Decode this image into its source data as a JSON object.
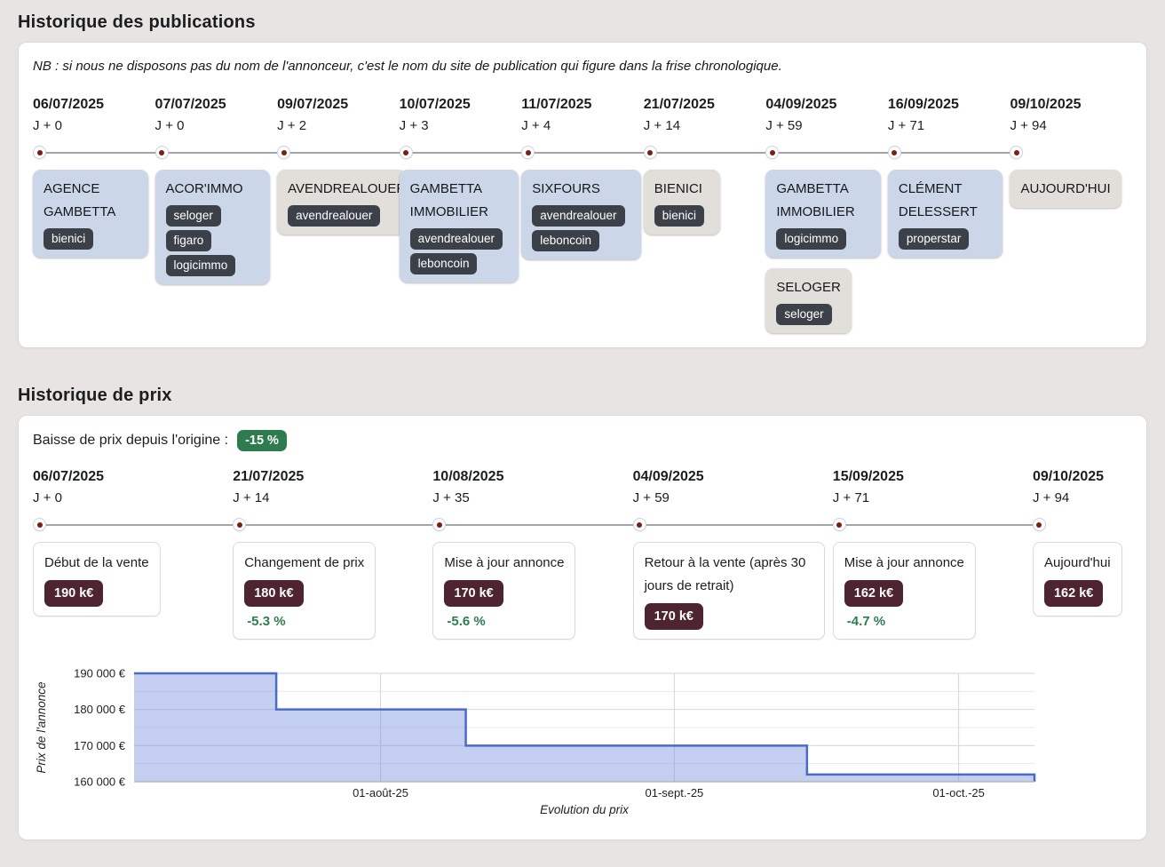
{
  "publications": {
    "title": "Historique des publications",
    "note": "NB : si nous ne disposons pas du nom de l'annonceur, c'est le nom du site de publication qui figure dans la frise chronologique.",
    "events": [
      {
        "date": "06/07/2025",
        "offset": "J + 0",
        "cards": [
          {
            "name": "AGENCE GAMBETTA",
            "type": "agency",
            "tags": [
              "bienici"
            ]
          }
        ]
      },
      {
        "date": "07/07/2025",
        "offset": "J + 0",
        "cards": [
          {
            "name": "ACOR'IMMO",
            "type": "agency",
            "tags": [
              "seloger",
              "figaro",
              "logicimmo"
            ]
          }
        ]
      },
      {
        "date": "09/07/2025",
        "offset": "J + 2",
        "cards": [
          {
            "name": "AVENDREALOUER",
            "type": "site",
            "tags": [
              "avendrealouer"
            ]
          }
        ]
      },
      {
        "date": "10/07/2025",
        "offset": "J + 3",
        "cards": [
          {
            "name": "GAMBETTA IMMOBILIER",
            "type": "agency",
            "tags": [
              "avendrealouer",
              "leboncoin"
            ]
          }
        ]
      },
      {
        "date": "11/07/2025",
        "offset": "J + 4",
        "cards": [
          {
            "name": "SIXFOURS",
            "type": "agency",
            "tags": [
              "avendrealouer",
              "leboncoin"
            ]
          }
        ]
      },
      {
        "date": "21/07/2025",
        "offset": "J + 14",
        "cards": [
          {
            "name": "BIENICI",
            "type": "site",
            "tags": [
              "bienici"
            ]
          }
        ]
      },
      {
        "date": "04/09/2025",
        "offset": "J + 59",
        "cards": [
          {
            "name": "GAMBETTA IMMOBILIER",
            "type": "agency",
            "tags": [
              "logicimmo"
            ]
          },
          {
            "name": "SELOGER",
            "type": "site",
            "tags": [
              "seloger"
            ]
          }
        ]
      },
      {
        "date": "16/09/2025",
        "offset": "J + 71",
        "cards": [
          {
            "name": "CLÉMENT DELESSERT",
            "type": "agency",
            "tags": [
              "properstar"
            ]
          }
        ]
      },
      {
        "date": "09/10/2025",
        "offset": "J + 94",
        "cards": [
          {
            "name": "AUJOURD'HUI",
            "type": "site",
            "tags": []
          }
        ]
      }
    ]
  },
  "prices": {
    "title": "Historique de prix",
    "drop_label": "Baisse de prix depuis l'origine :",
    "drop_value": "-15 %",
    "events": [
      {
        "date": "06/07/2025",
        "offset": "J + 0",
        "label": "Début de la vente",
        "price": "190 k€",
        "percent": ""
      },
      {
        "date": "21/07/2025",
        "offset": "J + 14",
        "label": "Changement de prix",
        "price": "180 k€",
        "percent": "-5.3 %"
      },
      {
        "date": "10/08/2025",
        "offset": "J + 35",
        "label": "Mise à jour annonce",
        "price": "170 k€",
        "percent": "-5.6 %"
      },
      {
        "date": "04/09/2025",
        "offset": "J + 59",
        "label": "Retour à la vente (après 30 jours de retrait)",
        "price": "170 k€",
        "percent": ""
      },
      {
        "date": "15/09/2025",
        "offset": "J + 71",
        "label": "Mise à jour annonce",
        "price": "162 k€",
        "percent": "-4.7 %"
      },
      {
        "date": "09/10/2025",
        "offset": "J + 94",
        "label": "Aujourd'hui",
        "price": "162 k€",
        "percent": ""
      }
    ]
  },
  "chart_data": {
    "type": "area",
    "step": true,
    "xlabel": "Evolution du prix",
    "ylabel": "Prix de l'annonce",
    "points": [
      {
        "day": 0,
        "price": 190000
      },
      {
        "day": 15,
        "price": 180000
      },
      {
        "day": 35,
        "price": 170000
      },
      {
        "day": 71,
        "price": 162000
      }
    ],
    "end_day": 95,
    "ylim": [
      160000,
      190000
    ],
    "y_grid_step": 5000,
    "yticks": [
      {
        "value": 190000,
        "label": "190 000 €"
      },
      {
        "value": 180000,
        "label": "180 000 €"
      },
      {
        "value": 170000,
        "label": "170 000 €"
      },
      {
        "value": 160000,
        "label": "160 000 €"
      }
    ],
    "xticks": [
      {
        "day": 26,
        "label": "01-août-25"
      },
      {
        "day": 57,
        "label": "01-sept.-25"
      },
      {
        "day": 87,
        "label": "01-oct.-25"
      }
    ],
    "grid": true,
    "legend": false,
    "line_color": "#4a6bc8",
    "fill_color": "rgba(122,147,221,0.45)"
  },
  "colors": {
    "page_background": "#e7e4e1",
    "panel_background": "#ffffff",
    "card_agency_blue": "#cbd7e8",
    "card_site_neutral": "#e2dfdb",
    "tag_dark": "#3c4149",
    "price_badge_maroon": "#4d2430",
    "timeline_dot_red": "#7a1f12",
    "percent_green": "#2e7d4f",
    "badge_green": "#2e7b4e",
    "chart_line": "#4a6bc8",
    "chart_fill": "#c5cfee"
  }
}
